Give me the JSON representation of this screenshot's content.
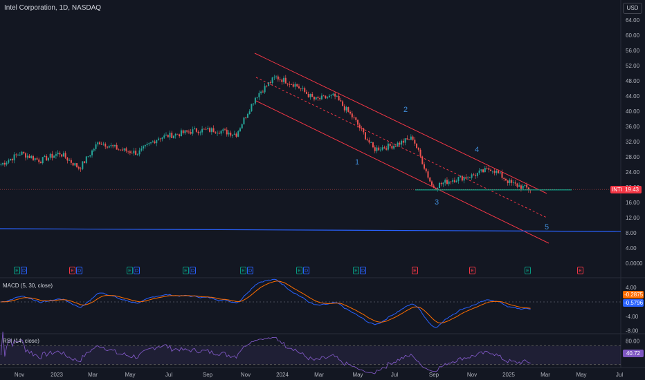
{
  "header": {
    "symbol_title": "Intel Corporation, 1D, NASDAQ",
    "currency": "USD"
  },
  "price_axis": {
    "ticks": [
      "64.00",
      "60.00",
      "56.00",
      "52.00",
      "48.00",
      "44.00",
      "40.00",
      "36.00",
      "32.00",
      "28.00",
      "24.00",
      "20.00",
      "16.00",
      "12.00",
      "8.00",
      "4.00",
      "0.0000"
    ],
    "tick_values": [
      64,
      60,
      56,
      52,
      48,
      44,
      40,
      36,
      32,
      28,
      24,
      20,
      16,
      12,
      8,
      4,
      0
    ]
  },
  "price_badge": {
    "symbol": "INTC",
    "value": "19.43"
  },
  "time_axis": {
    "labels": [
      "Nov",
      "2023",
      "Mar",
      "May",
      "Jul",
      "Sep",
      "Nov",
      "2024",
      "Mar",
      "May",
      "Jul",
      "Sep",
      "Nov",
      "2025",
      "Mar",
      "May",
      "Jul"
    ]
  },
  "events": [
    {
      "label": "E",
      "type": "earnings-green"
    },
    {
      "label": "D",
      "type": "dividend"
    },
    {
      "label": "E",
      "type": "earnings-red"
    },
    {
      "label": "D",
      "type": "dividend"
    },
    {
      "label": "E",
      "type": "earnings-green"
    },
    {
      "label": "D",
      "type": "dividend"
    },
    {
      "label": "E",
      "type": "earnings-green"
    },
    {
      "label": "D",
      "type": "dividend"
    },
    {
      "label": "E",
      "type": "earnings-green"
    },
    {
      "label": "D",
      "type": "dividend"
    },
    {
      "label": "E",
      "type": "earnings-green"
    },
    {
      "label": "D",
      "type": "dividend"
    },
    {
      "label": "E",
      "type": "earnings-green"
    },
    {
      "label": "D",
      "type": "dividend"
    },
    {
      "label": "E",
      "type": "earnings-red"
    },
    {
      "label": "E",
      "type": "earnings-red"
    },
    {
      "label": "E",
      "type": "earnings-green"
    },
    {
      "label": "E",
      "type": "earnings-red-outline"
    }
  ],
  "waves": [
    "1",
    "2",
    "3",
    "4",
    "5"
  ],
  "macd": {
    "label": "MACD (5, 30, close)",
    "ticks": [
      "4.00",
      "-4.00",
      "-8.00"
    ],
    "macd_value": "-0.2875",
    "signal_value": "-0.5796"
  },
  "rsi": {
    "label": "RSI (14, close)",
    "ticks": [
      "80.00",
      "40.72"
    ],
    "value": "40.72"
  },
  "colors": {
    "up": "#26a69a",
    "down": "#ef5350",
    "channel": "#f23645",
    "support": "#089981",
    "target_line": "#2962ff",
    "macd": "#2962ff",
    "signal": "#ff6d00",
    "rsi": "#7e57c2"
  },
  "chart_data": {
    "type": "candlestick",
    "title": "Intel Corporation, 1D, NASDAQ",
    "ylim": [
      0,
      66
    ],
    "x": [
      "Oct 2022",
      "Nov 2022",
      "Dec 2022",
      "Jan 2023",
      "Feb 2023",
      "Mar 2023",
      "Apr 2023",
      "May 2023",
      "Jun 2023",
      "Jul 2023",
      "Aug 2023",
      "Sep 2023",
      "Oct 2023",
      "Nov 2023",
      "Dec 2023",
      "Jan 2024",
      "Feb 2024",
      "Mar 2024",
      "Apr 2024",
      "May 2024",
      "Jun 2024",
      "Jul 2024",
      "Aug 2024",
      "Sep 2024",
      "Oct 2024",
      "Nov 2024",
      "Dec 2024",
      "Jan 2025"
    ],
    "close": [
      26,
      29,
      27,
      29,
      25,
      32,
      30,
      29,
      33,
      34,
      35,
      35,
      34,
      44,
      49,
      47,
      43,
      44,
      38,
      30,
      31,
      33,
      20,
      22,
      23,
      25,
      21,
      19.43
    ],
    "series": [
      {
        "name": "INTC",
        "values": [
          26,
          29,
          27,
          29,
          25,
          32,
          30,
          29,
          33,
          34,
          35,
          35,
          34,
          44,
          49,
          47,
          43,
          44,
          38,
          30,
          31,
          33,
          20,
          22,
          23,
          25,
          21,
          19.43
        ]
      }
    ],
    "annotations": {
      "support_level": 19.3,
      "target_level": 8.5,
      "last_price": 19.43
    }
  }
}
